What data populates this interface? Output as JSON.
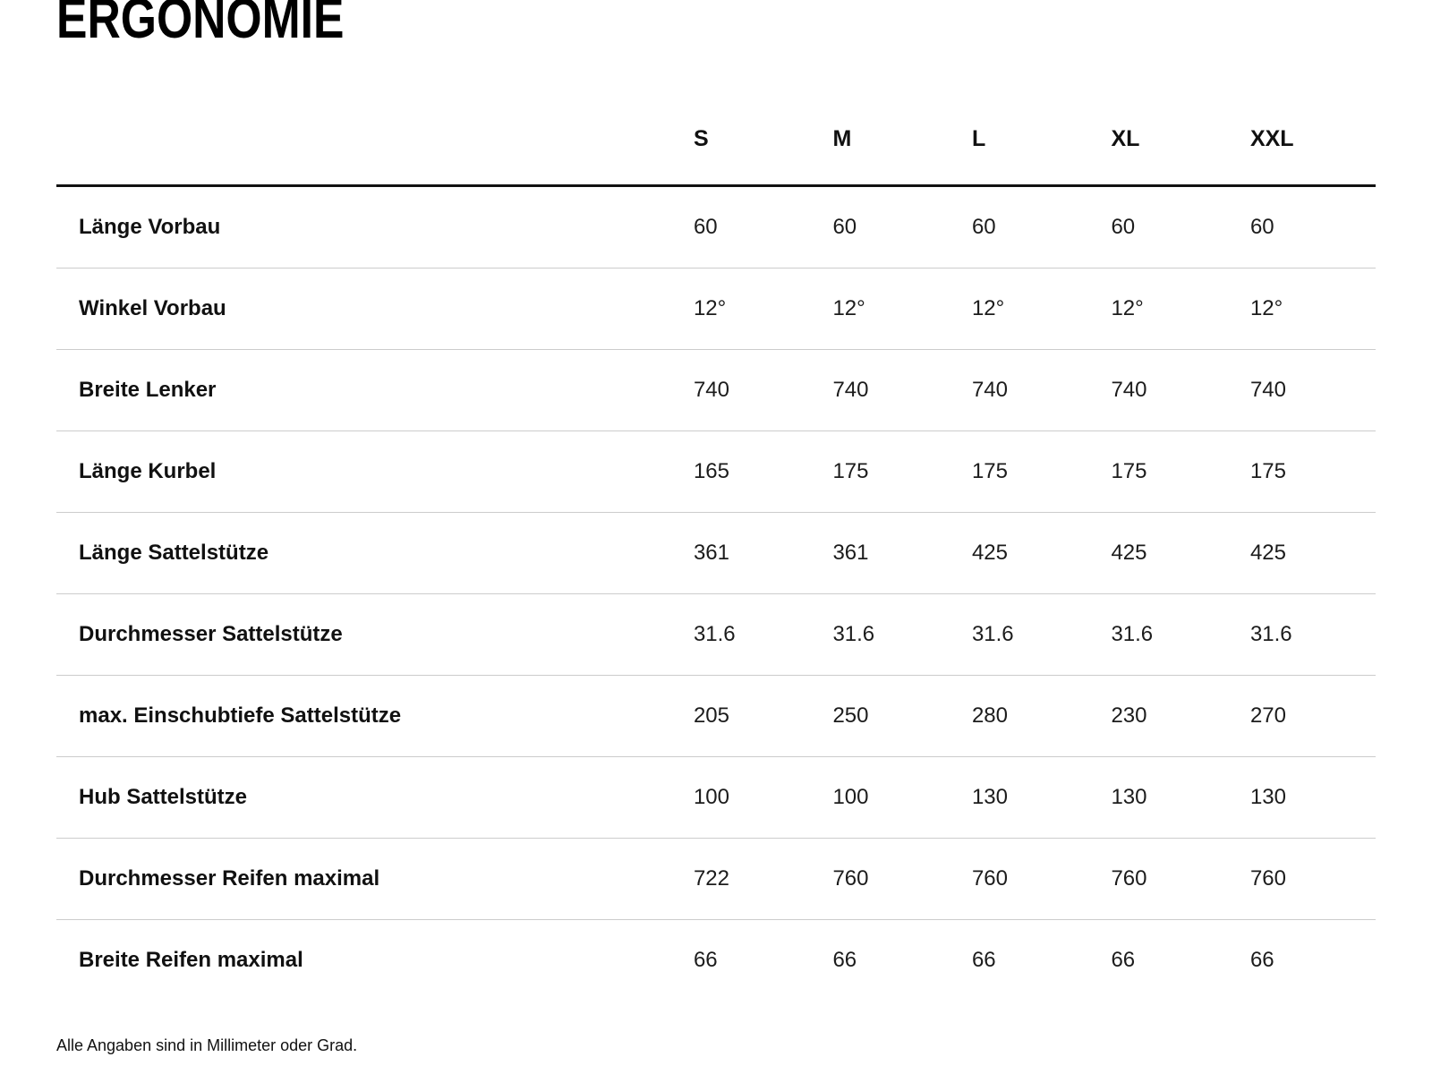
{
  "page": {
    "title": "ERGONOMIE",
    "footnote": "Alle Angaben sind in Millimeter oder Grad."
  },
  "table": {
    "columns": [
      "S",
      "M",
      "L",
      "XL",
      "XXL"
    ],
    "rows": [
      {
        "label": "Länge Vorbau",
        "values": [
          "60",
          "60",
          "60",
          "60",
          "60"
        ]
      },
      {
        "label": "Winkel Vorbau",
        "values": [
          "12°",
          "12°",
          "12°",
          "12°",
          "12°"
        ]
      },
      {
        "label": "Breite Lenker",
        "values": [
          "740",
          "740",
          "740",
          "740",
          "740"
        ]
      },
      {
        "label": "Länge Kurbel",
        "values": [
          "165",
          "175",
          "175",
          "175",
          "175"
        ]
      },
      {
        "label": "Länge Sattelstütze",
        "values": [
          "361",
          "361",
          "425",
          "425",
          "425"
        ]
      },
      {
        "label": "Durchmesser Sattelstütze",
        "values": [
          "31.6",
          "31.6",
          "31.6",
          "31.6",
          "31.6"
        ]
      },
      {
        "label": "max. Einschubtiefe Sattelstütze",
        "values": [
          "205",
          "250",
          "280",
          "230",
          "270"
        ]
      },
      {
        "label": "Hub Sattelstütze",
        "values": [
          "100",
          "100",
          "130",
          "130",
          "130"
        ]
      },
      {
        "label": "Durchmesser Reifen maximal",
        "values": [
          "722",
          "760",
          "760",
          "760",
          "760"
        ]
      },
      {
        "label": "Breite Reifen maximal",
        "values": [
          "66",
          "66",
          "66",
          "66",
          "66"
        ]
      }
    ]
  }
}
